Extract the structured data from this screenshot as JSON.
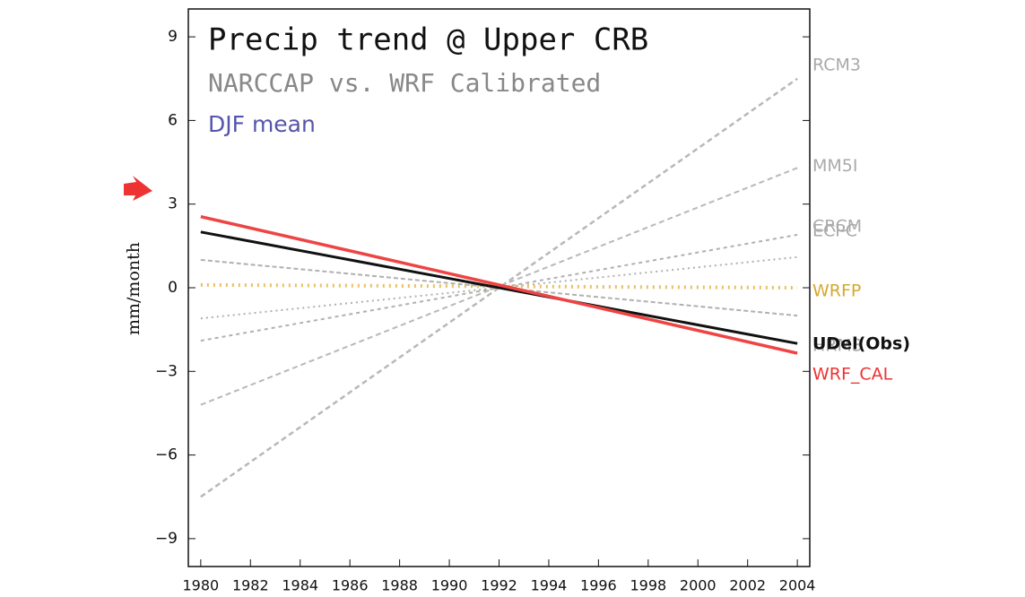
{
  "chart_data": {
    "type": "line",
    "title": "Precip trend @ Upper CRB",
    "subtitle": "NARCCAP vs. WRF Calibrated",
    "annotation": "DJF mean",
    "y_label": "mm/month",
    "x": [
      1980,
      2004
    ],
    "xlim": [
      1979.5,
      2004.5
    ],
    "xticks": [
      1980,
      1982,
      1984,
      1986,
      1988,
      1990,
      1992,
      1994,
      1996,
      1998,
      2000,
      2002,
      2004
    ],
    "ylim": [
      -10,
      10
    ],
    "yticks": [
      {
        "value": -9,
        "label": "−9"
      },
      {
        "value": -6,
        "label": "−6"
      },
      {
        "value": -3,
        "label": "−3"
      },
      0,
      3,
      6,
      9
    ],
    "series": [
      {
        "name": "RCM3",
        "color": "#b8b8b8",
        "values": [
          -7.5,
          7.5
        ]
      },
      {
        "name": "MM5I",
        "color": "#b8b8b8",
        "values": [
          -4.2,
          4.3
        ]
      },
      {
        "name": "ECPC",
        "color": "#b0b0b0",
        "values": [
          -1.9,
          1.9
        ]
      },
      {
        "name": "CRCM",
        "color": "#b0b0b0",
        "values": [
          -1.1,
          1.1
        ]
      },
      {
        "name": "WRFP",
        "color": "#e8c060",
        "values": [
          0.1,
          0.0
        ]
      },
      {
        "name": "HRM3",
        "color": "#b0b0b0",
        "values": [
          1.0,
          -1.0
        ]
      },
      {
        "name": "UDel(Obs)",
        "color": "#111111",
        "values": [
          2.0,
          -2.0
        ]
      },
      {
        "name": "WRF_CAL",
        "color": "#ee4444",
        "values": [
          2.55,
          -2.35
        ]
      }
    ]
  }
}
